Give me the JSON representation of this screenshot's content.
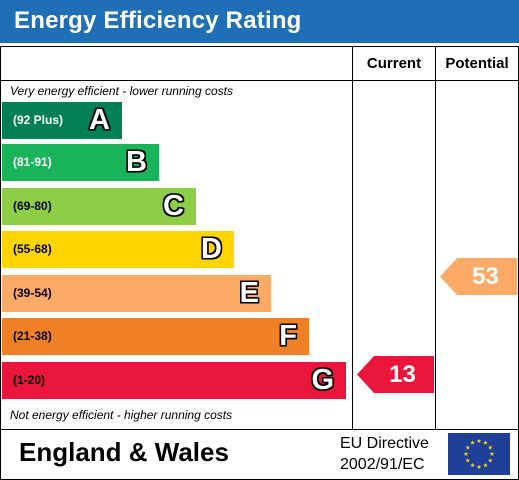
{
  "header": {
    "title": "Energy Efficiency Rating"
  },
  "columns": {
    "current": "Current",
    "potential": "Potential"
  },
  "notes": {
    "top": "Very energy efficient - lower running costs",
    "bottom": "Not energy efficient - higher running costs"
  },
  "bands": [
    {
      "range": "(92 Plus)",
      "letter": "A",
      "color": "#008054",
      "range_color": "#ffffff"
    },
    {
      "range": "(81-91)",
      "letter": "B",
      "color": "#19b459",
      "range_color": "#ffffff"
    },
    {
      "range": "(69-80)",
      "letter": "C",
      "color": "#8dce46",
      "range_color": "#000000"
    },
    {
      "range": "(55-68)",
      "letter": "D",
      "color": "#ffd500",
      "range_color": "#000000"
    },
    {
      "range": "(39-54)",
      "letter": "E",
      "color": "#fcaa65",
      "range_color": "#000000"
    },
    {
      "range": "(21-38)",
      "letter": "F",
      "color": "#ef8023",
      "range_color": "#000000"
    },
    {
      "range": "(1-20)",
      "letter": "G",
      "color": "#e9153b",
      "range_color": "#000000"
    }
  ],
  "ratings": {
    "current": {
      "value": "13",
      "band": "G",
      "color": "#e9153b"
    },
    "potential": {
      "value": "53",
      "band": "E",
      "color": "#fcaa65"
    }
  },
  "footer": {
    "region": "England & Wales",
    "directive_line1": "EU Directive",
    "directive_line2": "2002/91/EC",
    "flag_color": "#1f3f99",
    "star_color": "#ffdd00"
  }
}
